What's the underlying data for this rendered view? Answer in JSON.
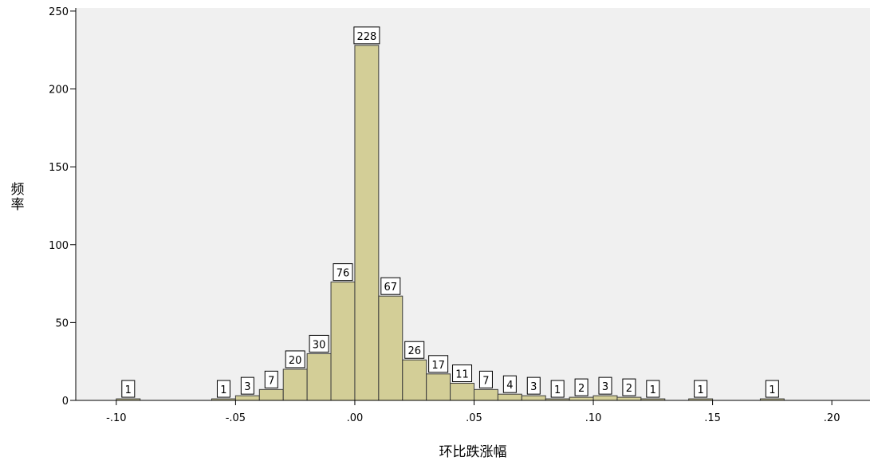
{
  "chart_data": {
    "type": "bar",
    "title": "",
    "xlabel": "环比跌涨幅",
    "ylabel": "频率",
    "xlim": [
      -0.117,
      0.216
    ],
    "ylim": [
      0,
      252
    ],
    "bin_width": 0.01,
    "x_ticks": [
      {
        "value": -0.1,
        "label": "-.10"
      },
      {
        "value": -0.05,
        "label": "-.05"
      },
      {
        "value": 0.0,
        "label": ".00"
      },
      {
        "value": 0.05,
        "label": ".05"
      },
      {
        "value": 0.1,
        "label": ".10"
      },
      {
        "value": 0.15,
        "label": ".15"
      },
      {
        "value": 0.2,
        "label": ".20"
      }
    ],
    "y_ticks": [
      {
        "value": 0,
        "label": "0"
      },
      {
        "value": 50,
        "label": "50"
      },
      {
        "value": 100,
        "label": "100"
      },
      {
        "value": 150,
        "label": "150"
      },
      {
        "value": 200,
        "label": "200"
      },
      {
        "value": 250,
        "label": "250"
      }
    ],
    "bins": [
      {
        "x": -0.095,
        "count": 1
      },
      {
        "x": -0.055,
        "count": 1
      },
      {
        "x": -0.045,
        "count": 3
      },
      {
        "x": -0.035,
        "count": 7
      },
      {
        "x": -0.025,
        "count": 20
      },
      {
        "x": -0.015,
        "count": 30
      },
      {
        "x": -0.005,
        "count": 76
      },
      {
        "x": 0.005,
        "count": 228
      },
      {
        "x": 0.015,
        "count": 67
      },
      {
        "x": 0.025,
        "count": 26
      },
      {
        "x": 0.035,
        "count": 17
      },
      {
        "x": 0.045,
        "count": 11
      },
      {
        "x": 0.055,
        "count": 7
      },
      {
        "x": 0.065,
        "count": 4
      },
      {
        "x": 0.075,
        "count": 3
      },
      {
        "x": 0.085,
        "count": 1
      },
      {
        "x": 0.095,
        "count": 2
      },
      {
        "x": 0.105,
        "count": 3
      },
      {
        "x": 0.115,
        "count": 2
      },
      {
        "x": 0.125,
        "count": 1
      },
      {
        "x": 0.145,
        "count": 1
      },
      {
        "x": 0.175,
        "count": 1
      }
    ],
    "grid": false,
    "legend": "none"
  },
  "colors": {
    "plot_background": "#f0f0f0",
    "bar_fill": "#d3ce97",
    "bar_stroke": "#3c3c3c",
    "axis": "#000000",
    "label_box": "#ffffff"
  }
}
